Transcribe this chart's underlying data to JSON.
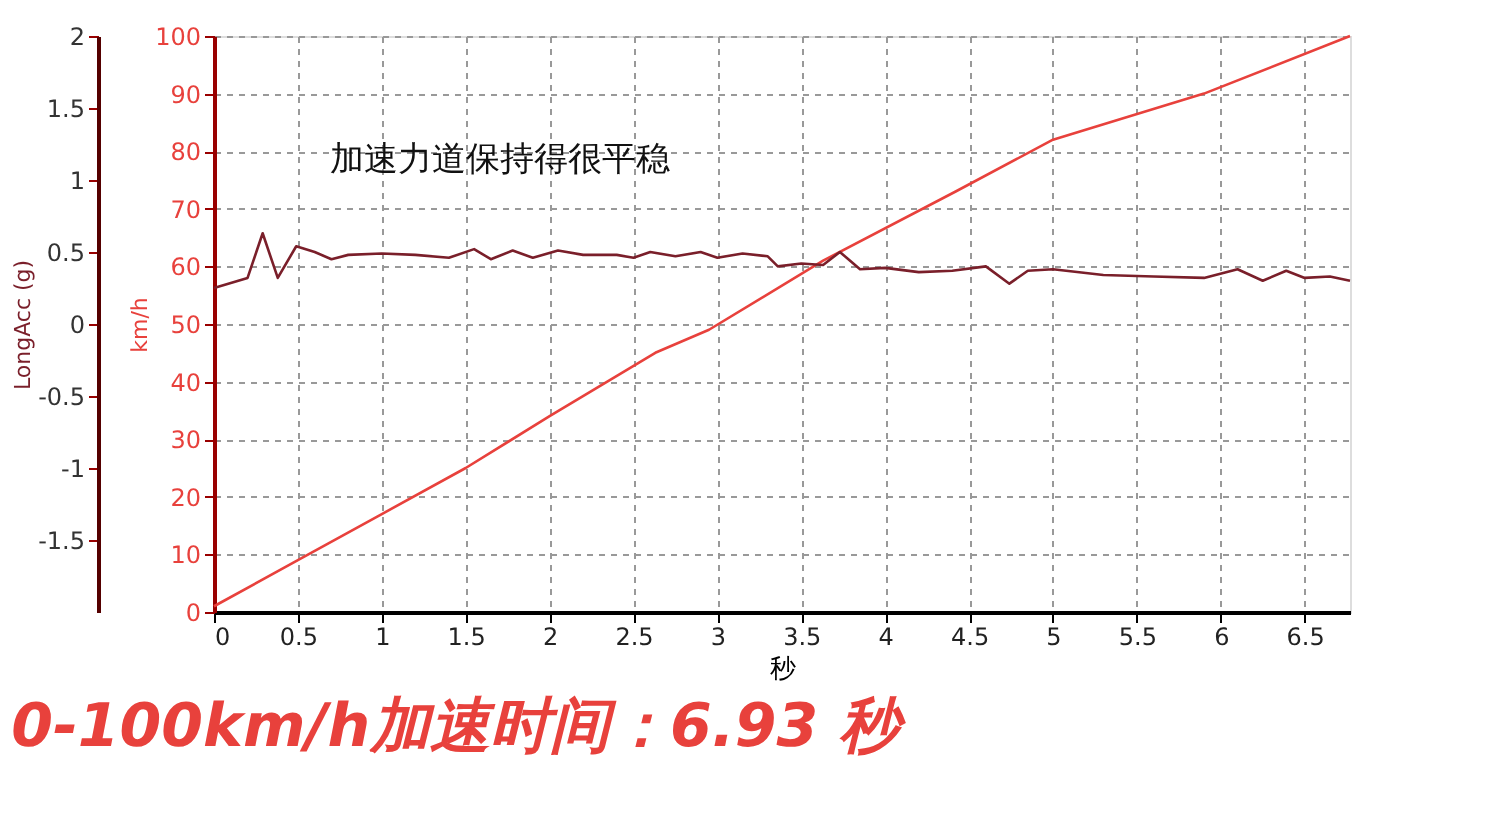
{
  "chart_data": {
    "type": "line",
    "xlabel": "秒",
    "ylabel": "km/h",
    "y2label": "LongAcc (g)",
    "annotations": [
      "加速力道保持得很平稳",
      "0-100km/h加速时间：6.93 秒"
    ],
    "xlim": [
      0,
      6.77
    ],
    "xticks": [
      0,
      0.5,
      1,
      1.5,
      2,
      2.5,
      3,
      3.5,
      4,
      4.5,
      5,
      5.5,
      6,
      6.5
    ],
    "ylim": [
      0,
      100
    ],
    "yticks": [
      0,
      10,
      20,
      30,
      40,
      50,
      60,
      70,
      80,
      90,
      100
    ],
    "y2lim": [
      -2,
      2
    ],
    "y2ticks": [
      -1.5,
      -1,
      -0.5,
      0,
      0.5,
      1,
      1.5,
      2
    ],
    "grid": true,
    "line_style": "solid",
    "marker": "none",
    "series": [
      {
        "color": "#e8413c",
        "x": [
          0,
          0.5,
          1,
          1.5,
          2,
          2.63,
          2.95,
          3.63,
          4.42,
          5,
          5.9,
          6.77
        ],
        "values": [
          1,
          9,
          17,
          25,
          34,
          45,
          49,
          61,
          73,
          82,
          90,
          100
        ]
      },
      {
        "color": "#7a1f2a",
        "axis": "y2",
        "x": [
          0,
          0.2,
          0.29,
          0.38,
          0.49,
          0.6,
          0.7,
          0.8,
          1.0,
          1.2,
          1.4,
          1.55,
          1.65,
          1.78,
          1.9,
          2.05,
          2.2,
          2.4,
          2.5,
          2.6,
          2.75,
          2.9,
          3.0,
          3.15,
          3.3,
          3.36,
          3.5,
          3.63,
          3.73,
          3.85,
          4.0,
          4.2,
          4.4,
          4.6,
          4.74,
          4.85,
          5.0,
          5.3,
          5.6,
          5.9,
          6.1,
          6.25,
          6.39,
          6.5,
          6.65,
          6.77
        ],
        "values": [
          0.25,
          0.32,
          0.63,
          0.32,
          0.54,
          0.5,
          0.45,
          0.48,
          0.49,
          0.48,
          0.46,
          0.52,
          0.45,
          0.51,
          0.46,
          0.51,
          0.48,
          0.48,
          0.46,
          0.5,
          0.47,
          0.5,
          0.46,
          0.49,
          0.47,
          0.4,
          0.42,
          0.41,
          0.5,
          0.38,
          0.39,
          0.36,
          0.37,
          0.4,
          0.28,
          0.37,
          0.38,
          0.34,
          0.33,
          0.32,
          0.38,
          0.3,
          0.37,
          0.32,
          0.33,
          0.3
        ]
      }
    ]
  }
}
